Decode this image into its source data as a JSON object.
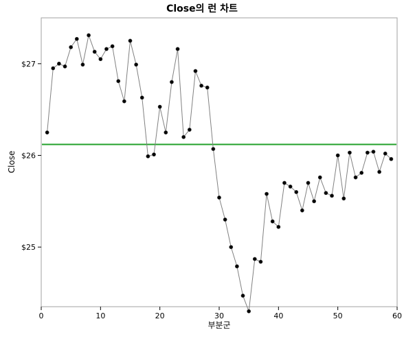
{
  "chart_data": {
    "type": "line",
    "title": "Close의 런 차트",
    "xlabel": "부분군",
    "ylabel": "Close",
    "xlim": [
      0,
      60
    ],
    "ylim": [
      24.35,
      27.5
    ],
    "x_ticks": [
      0,
      10,
      20,
      30,
      40,
      50,
      60
    ],
    "y_ticks": [
      25,
      26,
      27
    ],
    "x_tick_labels": [
      "0",
      "10",
      "20",
      "30",
      "40",
      "50",
      "60"
    ],
    "y_tick_labels": [
      "$25",
      "$26",
      "$27"
    ],
    "center_line": 26.12,
    "center_line_color": "#22a02a",
    "line_color": "#808080",
    "point_color": "#000000",
    "grid": false,
    "legend": "none",
    "series": [
      {
        "x": [
          1,
          2,
          3,
          4,
          5,
          6,
          7,
          8,
          9,
          10,
          11,
          12,
          13,
          14,
          15,
          16,
          17,
          18,
          19,
          20,
          21,
          22,
          23,
          24,
          25,
          26,
          27,
          28,
          29,
          30,
          31,
          32,
          33,
          34,
          35,
          36,
          37,
          38,
          39,
          40,
          41,
          42,
          43,
          44,
          45,
          46,
          47,
          48,
          49,
          50,
          51,
          52,
          53,
          54,
          55,
          56,
          57,
          58,
          59
        ],
        "values": [
          26.25,
          26.95,
          27.0,
          26.97,
          27.18,
          27.27,
          26.99,
          27.31,
          27.13,
          27.05,
          27.16,
          27.19,
          26.81,
          26.59,
          27.25,
          26.99,
          26.63,
          25.99,
          26.01,
          26.53,
          26.25,
          26.8,
          27.16,
          26.2,
          26.28,
          26.92,
          26.76,
          26.74,
          26.07,
          25.54,
          25.3,
          25.0,
          24.79,
          24.47,
          24.3,
          24.87,
          24.84,
          25.58,
          25.28,
          25.22,
          25.7,
          25.66,
          25.6,
          25.4,
          25.7,
          25.5,
          25.76,
          25.59,
          25.56,
          26.0,
          25.53,
          26.03,
          25.76,
          25.81,
          26.03,
          26.04,
          25.82,
          26.02,
          25.96
        ]
      }
    ]
  }
}
